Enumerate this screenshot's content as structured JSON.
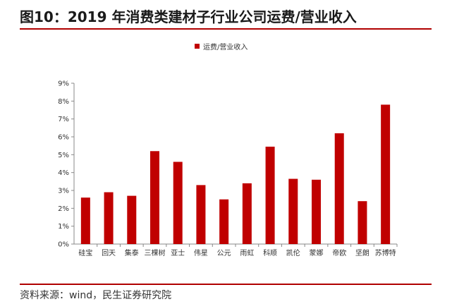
{
  "header": {
    "title": "图10：2019 年消费类建材子行业公司运费/营业收入"
  },
  "source": "资料来源：wind，民生证券研究院",
  "chart_data": {
    "type": "bar",
    "categories": [
      "硅宝",
      "回天",
      "集泰",
      "三棵树",
      "亚士",
      "伟星",
      "公元",
      "雨虹",
      "科顺",
      "凯伦",
      "蒙娜",
      "帝欧",
      "坚朗",
      "苏博特"
    ],
    "series": [
      {
        "name": "运费/营业收入",
        "values": [
          2.6,
          2.9,
          2.7,
          5.2,
          4.6,
          3.3,
          2.5,
          3.4,
          5.45,
          3.65,
          3.6,
          6.2,
          2.4,
          7.8
        ],
        "color": "#c00000"
      }
    ],
    "yticks": [
      "0%",
      "1%",
      "2%",
      "3%",
      "4%",
      "5%",
      "6%",
      "7%",
      "8%",
      "9%"
    ],
    "ylim": [
      0,
      9
    ],
    "grid": false,
    "legend_position": "top-center"
  }
}
